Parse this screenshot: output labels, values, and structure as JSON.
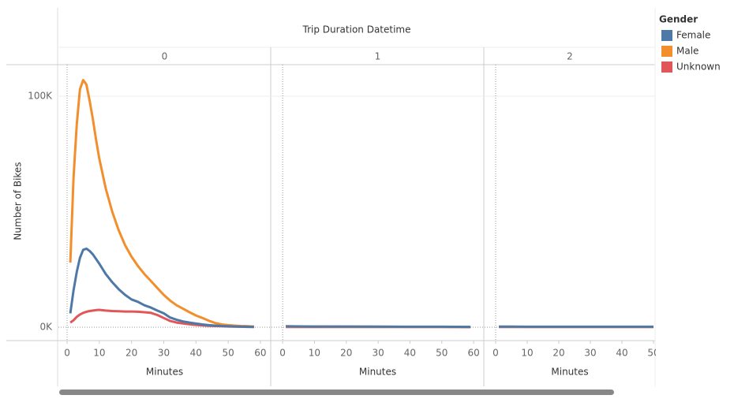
{
  "figure": {
    "title": "Trip Duration Datetime",
    "ylabel": "Number of Bikes",
    "legend_title": "Gender"
  },
  "chart_data": [
    {
      "type": "line",
      "panel": "0",
      "xlabel": "Minutes",
      "x": [
        1,
        2,
        3,
        4,
        5,
        6,
        7,
        8,
        9,
        10,
        12,
        14,
        16,
        18,
        20,
        22,
        24,
        26,
        28,
        30,
        32,
        34,
        36,
        38,
        40,
        42,
        44,
        46,
        48,
        50,
        52,
        54,
        56,
        58
      ],
      "xlim": [
        -2.7,
        63.2
      ],
      "xticks": [
        0,
        10,
        20,
        30,
        40,
        50,
        60
      ],
      "ylim": [
        -5800,
        113650
      ],
      "yticks": [
        {
          "value": 0,
          "label": "0K"
        },
        {
          "value": 100000,
          "label": "100K"
        }
      ],
      "series": [
        {
          "name": "Female",
          "color": "#4e79a7",
          "values": [
            6000,
            16000,
            24000,
            30000,
            33500,
            34000,
            33000,
            31500,
            29500,
            27500,
            23000,
            19500,
            16500,
            14000,
            12000,
            11000,
            9500,
            8500,
            7200,
            6000,
            4200,
            3200,
            2500,
            2000,
            1600,
            1200,
            900,
            700,
            500,
            400,
            300,
            250,
            200,
            150
          ]
        },
        {
          "name": "Male",
          "color": "#f28e2b",
          "values": [
            28000,
            65000,
            88000,
            103000,
            107000,
            105000,
            98000,
            90000,
            81000,
            73000,
            60000,
            50000,
            42000,
            35500,
            30500,
            26500,
            23000,
            20000,
            17000,
            14000,
            11500,
            9500,
            8000,
            6500,
            5100,
            4000,
            2800,
            1800,
            1200,
            900,
            700,
            500,
            400,
            300
          ]
        },
        {
          "name": "Unknown",
          "color": "#e15759",
          "values": [
            2000,
            3000,
            4500,
            5500,
            6200,
            6700,
            7000,
            7200,
            7400,
            7500,
            7200,
            7000,
            6900,
            6800,
            6800,
            6700,
            6500,
            6200,
            5300,
            4000,
            2700,
            2000,
            1600,
            1300,
            1000,
            800,
            600,
            500,
            400,
            300,
            250,
            200,
            150,
            100
          ]
        }
      ]
    },
    {
      "type": "line",
      "panel": "1",
      "xlabel": "Minutes",
      "x": [
        1,
        10,
        20,
        30,
        40,
        50,
        59
      ],
      "xlim": [
        -3.5,
        63.2
      ],
      "xticks": [
        0,
        10,
        20,
        30,
        40,
        50,
        60
      ],
      "ylim": [
        -5800,
        113650
      ],
      "series": [
        {
          "name": "Female",
          "color": "#4e79a7",
          "values": [
            400,
            300,
            300,
            250,
            200,
            200,
            150
          ]
        },
        {
          "name": "Male",
          "color": "#f28e2b",
          "values": [
            300,
            250,
            200,
            200,
            150,
            150,
            100
          ]
        },
        {
          "name": "Unknown",
          "color": "#e15759",
          "values": [
            100,
            100,
            80,
            80,
            60,
            60,
            50
          ]
        }
      ]
    },
    {
      "type": "line",
      "panel": "2",
      "xlabel": "Minutes",
      "x": [
        1,
        5,
        10,
        20,
        30,
        40,
        50
      ],
      "xlim": [
        -3.5,
        50.5
      ],
      "xticks": [
        0,
        10,
        20,
        30,
        40,
        50
      ],
      "ylim": [
        -5800,
        113650
      ],
      "series": [
        {
          "name": "Female",
          "color": "#4e79a7",
          "values": [
            250,
            250,
            200,
            200,
            200,
            200,
            200
          ]
        },
        {
          "name": "Male",
          "color": "#f28e2b",
          "values": [
            200,
            200,
            150,
            150,
            150,
            150,
            150
          ]
        },
        {
          "name": "Unknown",
          "color": "#e15759",
          "values": [
            80,
            80,
            60,
            60,
            60,
            60,
            60
          ]
        }
      ]
    }
  ]
}
